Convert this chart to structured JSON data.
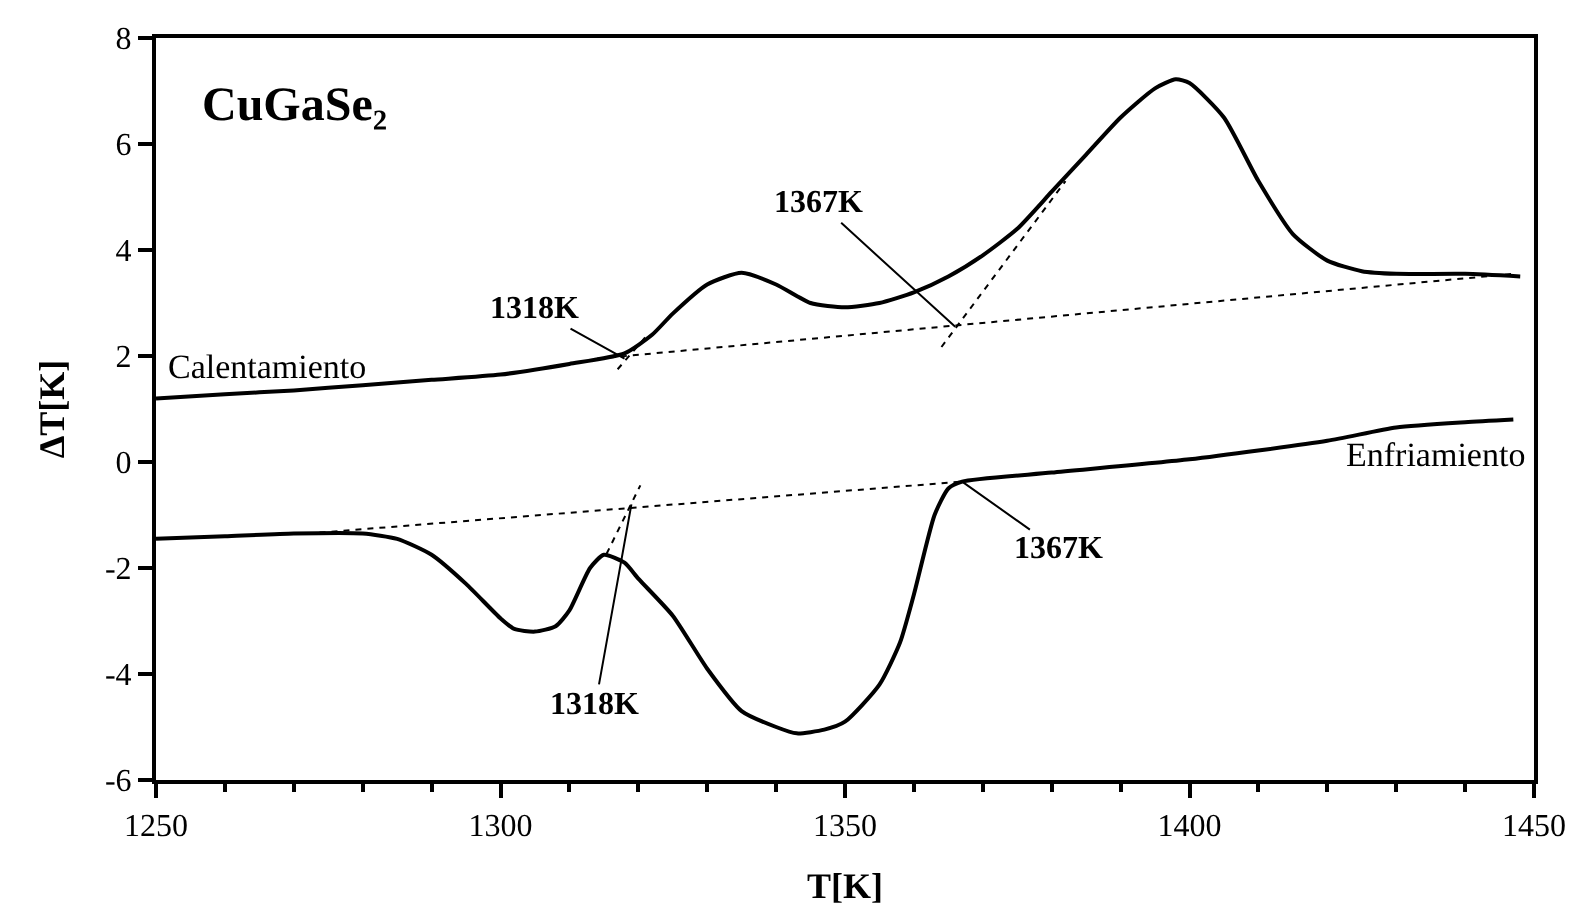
{
  "chart_data": {
    "type": "line",
    "title": "CuGaSe₂",
    "xlabel": "T[K]",
    "ylabel": "ΔT[K]",
    "xlim": [
      1250,
      1450
    ],
    "xticks": [
      1250,
      1300,
      1350,
      1400,
      1450
    ],
    "ylim": [
      -6,
      8
    ],
    "yticks": [
      -6,
      -4,
      -2,
      0,
      2,
      4,
      6,
      8
    ],
    "legend": false,
    "marker": "none",
    "line_style": "solid",
    "series": [
      {
        "name": "Calentamiento",
        "color": "#000000",
        "x": [
          1250,
          1260,
          1270,
          1280,
          1290,
          1300,
          1310,
          1318,
          1322,
          1325,
          1330,
          1335,
          1340,
          1345,
          1350,
          1355,
          1360,
          1365,
          1370,
          1375,
          1380,
          1385,
          1390,
          1395,
          1398,
          1400,
          1405,
          1410,
          1415,
          1420,
          1425,
          1430,
          1440,
          1448
        ],
        "values": [
          1.2,
          1.28,
          1.35,
          1.45,
          1.55,
          1.65,
          1.85,
          2.05,
          2.4,
          2.8,
          3.35,
          3.57,
          3.35,
          3.0,
          2.92,
          3.0,
          3.2,
          3.5,
          3.9,
          4.4,
          5.1,
          5.8,
          6.5,
          7.05,
          7.22,
          7.15,
          6.5,
          5.3,
          4.3,
          3.8,
          3.6,
          3.55,
          3.55,
          3.5
        ]
      },
      {
        "name": "Enfriamiento",
        "color": "#000000",
        "x": [
          1250,
          1260,
          1270,
          1280,
          1285,
          1290,
          1295,
          1300,
          1302,
          1305,
          1308,
          1310,
          1313,
          1315,
          1318,
          1320,
          1325,
          1330,
          1335,
          1340,
          1343,
          1347,
          1350,
          1355,
          1358,
          1360,
          1363,
          1365,
          1367,
          1380,
          1400,
          1420,
          1430,
          1440,
          1447
        ],
        "values": [
          -1.45,
          -1.4,
          -1.35,
          -1.35,
          -1.45,
          -1.75,
          -2.3,
          -2.95,
          -3.15,
          -3.2,
          -3.1,
          -2.8,
          -2.0,
          -1.75,
          -1.9,
          -2.2,
          -2.9,
          -3.9,
          -4.7,
          -5.0,
          -5.12,
          -5.05,
          -4.9,
          -4.2,
          -3.4,
          -2.5,
          -1.0,
          -0.5,
          -0.37,
          -0.2,
          0.05,
          0.4,
          0.65,
          0.75,
          0.8
        ]
      },
      {
        "color": "#000000",
        "line_style": "dotted",
        "x": [
          1314,
          1447
        ],
        "values": [
          1.95,
          3.55
        ]
      },
      {
        "color": "#000000",
        "line_style": "dotted",
        "x": [
          1364,
          1382
        ],
        "values": [
          2.17,
          5.3
        ]
      },
      {
        "color": "#000000",
        "line_style": "dotted",
        "x": [
          1317,
          1321
        ],
        "values": [
          1.75,
          2.35
        ]
      },
      {
        "color": "#000000",
        "line_style": "dotted",
        "x": [
          1272,
          1367
        ],
        "values": [
          -1.35,
          -0.37
        ]
      },
      {
        "color": "#000000",
        "line_style": "dotted",
        "x": [
          1315.4,
          1320.3
        ],
        "values": [
          -1.73,
          -0.44
        ]
      }
    ],
    "annotations": [
      {
        "text": "1318K",
        "x": 1318,
        "y": 1.95
      },
      {
        "text": "1367K",
        "x": 1366,
        "y": 2.55
      },
      {
        "text": "1318K",
        "x": 1319,
        "y": -0.8
      },
      {
        "text": "1367K",
        "x": 1367,
        "y": -0.37
      }
    ]
  }
}
